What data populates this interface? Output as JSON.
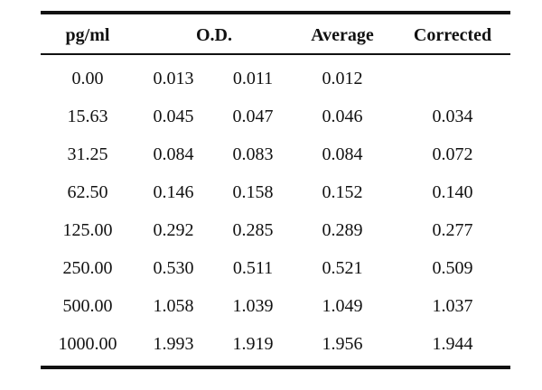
{
  "table": {
    "headers": {
      "concentration": "pg/ml",
      "od": "O.D.",
      "average": "Average",
      "corrected": "Corrected"
    },
    "rows": [
      {
        "concentration": "0.00",
        "od1": "0.013",
        "od2": "0.011",
        "average": "0.012",
        "corrected": ""
      },
      {
        "concentration": "15.63",
        "od1": "0.045",
        "od2": "0.047",
        "average": "0.046",
        "corrected": "0.034"
      },
      {
        "concentration": "31.25",
        "od1": "0.084",
        "od2": "0.083",
        "average": "0.084",
        "corrected": "0.072"
      },
      {
        "concentration": "62.50",
        "od1": "0.146",
        "od2": "0.158",
        "average": "0.152",
        "corrected": "0.140"
      },
      {
        "concentration": "125.00",
        "od1": "0.292",
        "od2": "0.285",
        "average": "0.289",
        "corrected": "0.277"
      },
      {
        "concentration": "250.00",
        "od1": "0.530",
        "od2": "0.511",
        "average": "0.521",
        "corrected": "0.509"
      },
      {
        "concentration": "500.00",
        "od1": "1.058",
        "od2": "1.039",
        "average": "1.049",
        "corrected": "1.037"
      },
      {
        "concentration": "1000.00",
        "od1": "1.993",
        "od2": "1.919",
        "average": "1.956",
        "corrected": "1.944"
      }
    ]
  }
}
